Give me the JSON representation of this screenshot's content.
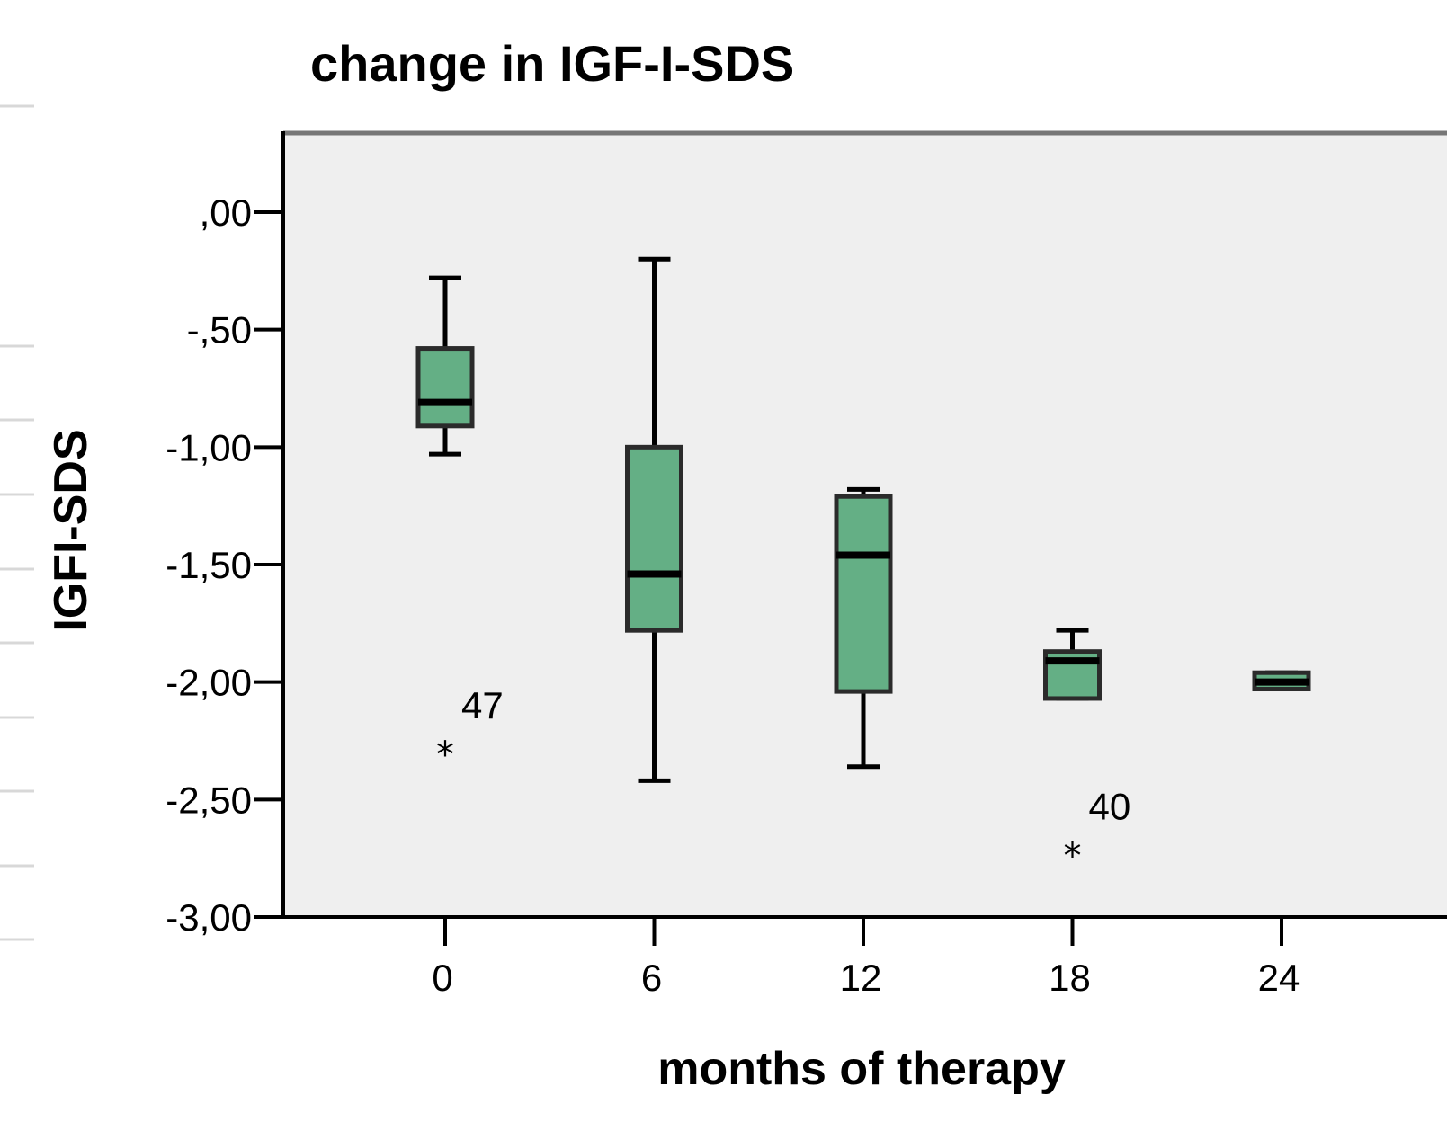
{
  "chart_data": {
    "type": "boxplot",
    "title": "change in IGF-I-SDS",
    "xlabel": "months of therapy",
    "ylabel": "IGFI-SDS",
    "ylim": [
      -3.0,
      0.0
    ],
    "yticks": [
      0.0,
      -0.5,
      -1.0,
      -1.5,
      -2.0,
      -2.5,
      -3.0
    ],
    "ytick_labels": [
      ",00",
      "-,50",
      "-1,00",
      "-1,50",
      "-2,00",
      "-2,50",
      "-3,00"
    ],
    "categories": [
      "0",
      "6",
      "12",
      "18",
      "24"
    ],
    "boxes": [
      {
        "category": "0",
        "whisker_low": -1.03,
        "q1": -0.91,
        "median": -0.81,
        "q3": -0.58,
        "whisker_high": -0.28
      },
      {
        "category": "6",
        "whisker_low": -2.42,
        "q1": -1.78,
        "median": -1.54,
        "q3": -1.0,
        "whisker_high": -0.2
      },
      {
        "category": "12",
        "whisker_low": -2.36,
        "q1": -2.04,
        "median": -1.46,
        "q3": -1.21,
        "whisker_high": -1.18
      },
      {
        "category": "18",
        "whisker_low": -2.07,
        "q1": -2.07,
        "median": -1.91,
        "q3": -1.87,
        "whisker_high": -1.78
      },
      {
        "category": "24",
        "whisker_low": -2.03,
        "q1": -2.03,
        "median": -2.0,
        "q3": -1.96,
        "whisker_high": -1.96
      }
    ],
    "outliers": [
      {
        "category": "0",
        "value": -2.27,
        "label": "47"
      },
      {
        "category": "18",
        "value": -2.7,
        "label": "40"
      }
    ],
    "colors": {
      "box_fill": "#64af85",
      "plot_background": "#efefef",
      "frame": "#000000"
    },
    "grid": false,
    "legend": "none"
  }
}
